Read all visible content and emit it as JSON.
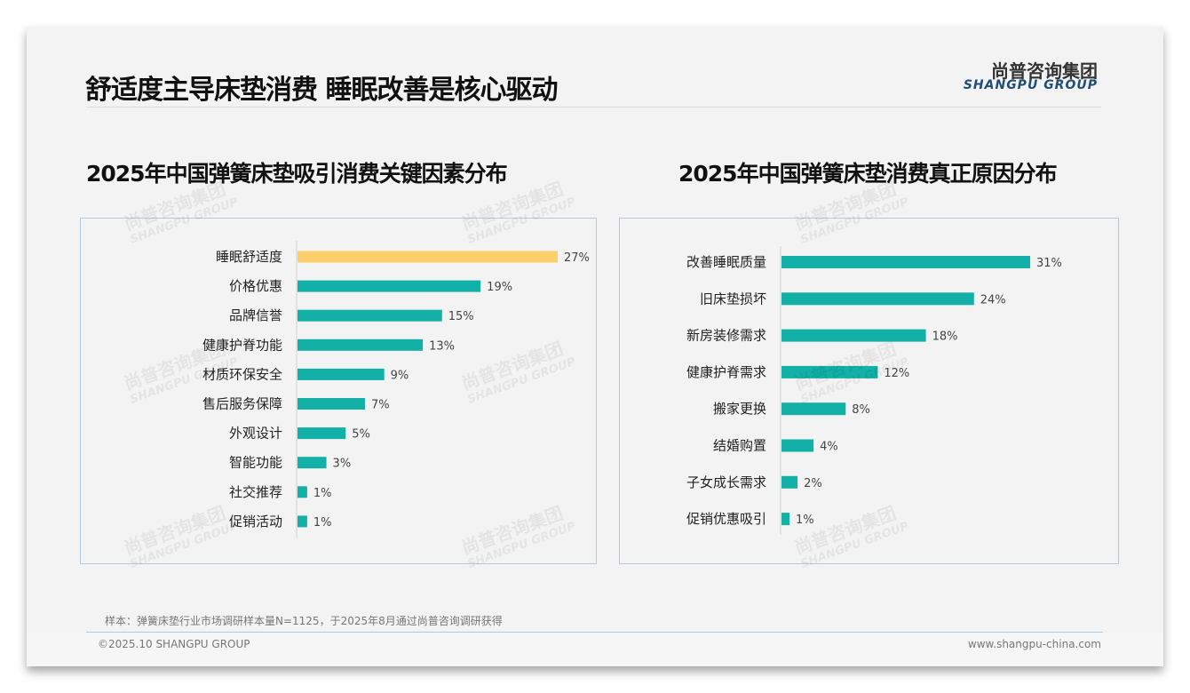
{
  "header": {
    "title": "舒适度主导床垫消费 睡眠改善是核心驱动",
    "logo_cn": "尚普咨询集团",
    "logo_en": "SHANGPU GROUP"
  },
  "watermark": {
    "cn": "尚普咨询集团",
    "en": "SHANGPU GROUP"
  },
  "colors": {
    "bar": "#12b0a6",
    "highlight": "#fccf6a"
  },
  "chart_data": [
    {
      "type": "bar",
      "orientation": "horizontal",
      "title": "2025年中国弹簧床垫吸引消费关键因素分布",
      "categories": [
        "睡眠舒适度",
        "价格优惠",
        "品牌信誉",
        "健康护脊功能",
        "材质环保安全",
        "售后服务保障",
        "外观设计",
        "智能功能",
        "社交推荐",
        "促销活动"
      ],
      "values": [
        27,
        19,
        15,
        13,
        9,
        7,
        5,
        3,
        1,
        1
      ],
      "labels": [
        "27%",
        "19%",
        "15%",
        "13%",
        "9%",
        "7%",
        "5%",
        "3%",
        "1%",
        "1%"
      ],
      "highlight_index": 0,
      "xlim": [
        0,
        27
      ]
    },
    {
      "type": "bar",
      "orientation": "horizontal",
      "title": "2025年中国弹簧床垫消费真正原因分布",
      "categories": [
        "改善睡眠质量",
        "旧床垫损坏",
        "新房装修需求",
        "健康护脊需求",
        "搬家更换",
        "结婚购置",
        "子女成长需求",
        "促销优惠吸引"
      ],
      "values": [
        31,
        24,
        18,
        12,
        8,
        4,
        2,
        1
      ],
      "labels": [
        "31%",
        "24%",
        "18%",
        "12%",
        "8%",
        "4%",
        "2%",
        "1%"
      ],
      "highlight_index": -1,
      "xlim": [
        0,
        31
      ]
    }
  ],
  "footer": {
    "note": "样本：弹簧床垫行业市场调研样本量N=1125，于2025年8月通过尚普咨询调研获得",
    "copyright": "©2025.10 SHANGPU GROUP",
    "url": "www.shangpu-china.com"
  }
}
